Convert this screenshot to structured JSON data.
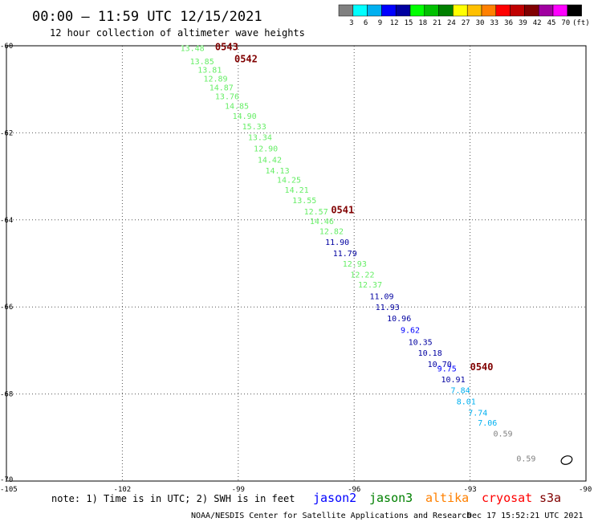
{
  "header": {
    "title": "00:00 – 11:59 UTC 12/15/2021",
    "subtitle": "12 hour collection of altimeter wave heights"
  },
  "legend": {
    "unit": "(ft)",
    "bins": [
      {
        "label": "",
        "color": "#808080"
      },
      {
        "label": "3",
        "color": "#00ffff"
      },
      {
        "label": "6",
        "color": "#00b0f0"
      },
      {
        "label": "9",
        "color": "#0000ff"
      },
      {
        "label": "12",
        "color": "#0000a0"
      },
      {
        "label": "15",
        "color": "#00ff00"
      },
      {
        "label": "18",
        "color": "#00c000"
      },
      {
        "label": "21",
        "color": "#008000"
      },
      {
        "label": "24",
        "color": "#ffff00"
      },
      {
        "label": "27",
        "color": "#ffc000"
      },
      {
        "label": "30",
        "color": "#ff8000"
      },
      {
        "label": "33",
        "color": "#ff0000"
      },
      {
        "label": "36",
        "color": "#c00000"
      },
      {
        "label": "39",
        "color": "#800000"
      },
      {
        "label": "42",
        "color": "#a000a0"
      },
      {
        "label": "45",
        "color": "#ff00ff"
      },
      {
        "label": "70",
        "color": "#000000"
      }
    ]
  },
  "chart_data": {
    "type": "scatter",
    "title": "00:00 – 11:59 UTC 12/15/2021",
    "subtitle": "12 hour collection of altimeter wave heights",
    "xlim": [
      -105,
      -90
    ],
    "ylim": [
      -70,
      -60
    ],
    "x_ticks": [
      -102,
      -99,
      -96,
      -93
    ],
    "y_ticks": [
      -62,
      -64,
      -66,
      -68
    ],
    "corner_labels": {
      "top_left": "-60",
      "bottom_left": "-70",
      "bottom_x_left": "-105",
      "bottom_x_right": "-90"
    },
    "grid": true,
    "points": [
      {
        "x": -100.5,
        "y": -60.12,
        "label": "13.48",
        "color": "#66ee66"
      },
      {
        "x": -100.25,
        "y": -60.42,
        "label": "13.85",
        "color": "#66ee66"
      },
      {
        "x": -100.05,
        "y": -60.62,
        "label": "13.81",
        "color": "#66ee66"
      },
      {
        "x": -99.9,
        "y": -60.82,
        "label": "12.89",
        "color": "#66ee66"
      },
      {
        "x": -99.75,
        "y": -61.02,
        "label": "14.87",
        "color": "#66ee66"
      },
      {
        "x": -99.6,
        "y": -61.23,
        "label": "13.76",
        "color": "#66ee66"
      },
      {
        "x": -99.35,
        "y": -61.45,
        "label": "14.85",
        "color": "#66ee66"
      },
      {
        "x": -99.15,
        "y": -61.68,
        "label": "14.90",
        "color": "#66ee66"
      },
      {
        "x": -98.9,
        "y": -61.92,
        "label": "15.33",
        "color": "#66ee66"
      },
      {
        "x": -98.75,
        "y": -62.17,
        "label": "13.34",
        "color": "#66ee66"
      },
      {
        "x": -98.6,
        "y": -62.43,
        "label": "12.90",
        "color": "#66ee66"
      },
      {
        "x": -98.5,
        "y": -62.68,
        "label": "14.42",
        "color": "#66ee66"
      },
      {
        "x": -98.3,
        "y": -62.93,
        "label": "14.13",
        "color": "#66ee66"
      },
      {
        "x": -98.0,
        "y": -63.15,
        "label": "14.25",
        "color": "#66ee66"
      },
      {
        "x": -97.8,
        "y": -63.38,
        "label": "14.21",
        "color": "#66ee66"
      },
      {
        "x": -97.6,
        "y": -63.62,
        "label": "13.55",
        "color": "#66ee66"
      },
      {
        "x": -97.3,
        "y": -63.87,
        "label": "12.57",
        "color": "#66ee66"
      },
      {
        "x": -97.15,
        "y": -64.1,
        "label": "14.46",
        "color": "#66ee66"
      },
      {
        "x": -96.9,
        "y": -64.33,
        "label": "12.82",
        "color": "#66ee66"
      },
      {
        "x": -96.75,
        "y": -64.58,
        "label": "11.90",
        "color": "#0000a0"
      },
      {
        "x": -96.55,
        "y": -64.83,
        "label": "11.79",
        "color": "#0000a0"
      },
      {
        "x": -96.3,
        "y": -65.07,
        "label": "12.93",
        "color": "#66ee66"
      },
      {
        "x": -96.1,
        "y": -65.32,
        "label": "12.22",
        "color": "#66ee66"
      },
      {
        "x": -95.9,
        "y": -65.55,
        "label": "12.37",
        "color": "#66ee66"
      },
      {
        "x": -95.6,
        "y": -65.82,
        "label": "11.09",
        "color": "#0000a0"
      },
      {
        "x": -95.45,
        "y": -66.07,
        "label": "11.93",
        "color": "#0000a0"
      },
      {
        "x": -95.15,
        "y": -66.33,
        "label": "10.96",
        "color": "#0000a0"
      },
      {
        "x": -94.8,
        "y": -66.6,
        "label": "9.62",
        "color": "#0000ff"
      },
      {
        "x": -94.6,
        "y": -66.87,
        "label": "10.35",
        "color": "#0000a0"
      },
      {
        "x": -94.35,
        "y": -67.12,
        "label": "10.18",
        "color": "#0000a0"
      },
      {
        "x": -94.1,
        "y": -67.38,
        "label": "10.70",
        "color": "#0000a0"
      },
      {
        "x": -93.85,
        "y": -67.48,
        "label": "9.75",
        "color": "#0000ff"
      },
      {
        "x": -93.75,
        "y": -67.73,
        "label": "10.91",
        "color": "#0000a0"
      },
      {
        "x": -93.5,
        "y": -67.98,
        "label": "7.84",
        "color": "#00b0f0"
      },
      {
        "x": -93.35,
        "y": -68.24,
        "label": "8.01",
        "color": "#00b0f0"
      },
      {
        "x": -93.05,
        "y": -68.5,
        "label": "7.74",
        "color": "#00b0f0"
      },
      {
        "x": -92.8,
        "y": -68.73,
        "label": "7.06",
        "color": "#00b0f0"
      },
      {
        "x": -92.4,
        "y": -68.98,
        "label": "0.59",
        "color": "#808080"
      },
      {
        "x": -91.8,
        "y": -69.55,
        "label": "0.59",
        "color": "#808080"
      }
    ],
    "time_labels": [
      {
        "x": -99.6,
        "y": -60.1,
        "label": "0543"
      },
      {
        "x": -99.1,
        "y": -60.38,
        "label": "0542"
      },
      {
        "x": -96.6,
        "y": -63.85,
        "label": "0541"
      },
      {
        "x": -93.0,
        "y": -67.45,
        "label": "0540"
      }
    ],
    "island": {
      "x": -90.5,
      "y": -69.52
    }
  },
  "footer": {
    "note": "note: 1) Time is in UTC; 2) SWH is in feet",
    "satellites": [
      {
        "name": "jason2",
        "color": "#0000ff"
      },
      {
        "name": "jason3",
        "color": "#008000"
      },
      {
        "name": "altika",
        "color": "#ff8000"
      },
      {
        "name": "cryosat",
        "color": "#ff0000"
      },
      {
        "name": "s3a",
        "color": "#800000"
      }
    ],
    "credit": "NOAA/NESDIS Center for Satellite Applications and Research",
    "timestamp": "Dec 17 15:52:21 UTC 2021"
  }
}
